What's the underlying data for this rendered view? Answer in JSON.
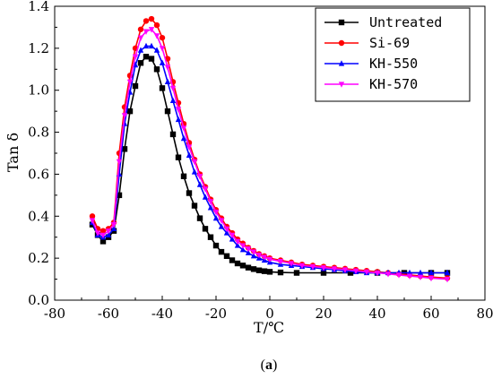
{
  "caption": {
    "prefix": "(",
    "letter": "a",
    "suffix": ")"
  },
  "chart_data": {
    "type": "line",
    "xlabel": "T/℃",
    "ylabel": "Tan δ",
    "xlim": [
      -80,
      80
    ],
    "ylim": [
      0.0,
      1.4
    ],
    "xticks": [
      -80,
      -60,
      -40,
      -20,
      0,
      20,
      40,
      60,
      80
    ],
    "yticks": [
      "0.0",
      "0.2",
      "0.4",
      "0.6",
      "0.8",
      "1.0",
      "1.2",
      "1.4"
    ],
    "grid": false,
    "legend_position": "top-right",
    "series": [
      {
        "name": "Untreated",
        "color": "#000000",
        "marker": "square",
        "points": [
          [
            -66,
            0.36
          ],
          [
            -64,
            0.31
          ],
          [
            -62,
            0.28
          ],
          [
            -60,
            0.3
          ],
          [
            -58,
            0.33
          ],
          [
            -56,
            0.5
          ],
          [
            -54,
            0.72
          ],
          [
            -52,
            0.9
          ],
          [
            -50,
            1.02
          ],
          [
            -48,
            1.13
          ],
          [
            -46,
            1.16
          ],
          [
            -44,
            1.15
          ],
          [
            -42,
            1.1
          ],
          [
            -40,
            1.01
          ],
          [
            -38,
            0.9
          ],
          [
            -36,
            0.79
          ],
          [
            -34,
            0.68
          ],
          [
            -32,
            0.59
          ],
          [
            -30,
            0.51
          ],
          [
            -28,
            0.45
          ],
          [
            -26,
            0.39
          ],
          [
            -24,
            0.34
          ],
          [
            -22,
            0.3
          ],
          [
            -20,
            0.26
          ],
          [
            -18,
            0.23
          ],
          [
            -16,
            0.21
          ],
          [
            -14,
            0.19
          ],
          [
            -12,
            0.175
          ],
          [
            -10,
            0.165
          ],
          [
            -8,
            0.155
          ],
          [
            -6,
            0.148
          ],
          [
            -4,
            0.142
          ],
          [
            -2,
            0.138
          ],
          [
            0,
            0.135
          ],
          [
            4,
            0.132
          ],
          [
            10,
            0.13
          ],
          [
            20,
            0.13
          ],
          [
            30,
            0.13
          ],
          [
            40,
            0.13
          ],
          [
            50,
            0.13
          ],
          [
            60,
            0.13
          ],
          [
            66,
            0.13
          ]
        ]
      },
      {
        "name": "Si-69",
        "color": "#ff0000",
        "marker": "circle",
        "points": [
          [
            -66,
            0.4
          ],
          [
            -64,
            0.34
          ],
          [
            -62,
            0.33
          ],
          [
            -60,
            0.34
          ],
          [
            -58,
            0.37
          ],
          [
            -56,
            0.7
          ],
          [
            -54,
            0.92
          ],
          [
            -52,
            1.07
          ],
          [
            -50,
            1.2
          ],
          [
            -48,
            1.29
          ],
          [
            -46,
            1.33
          ],
          [
            -44,
            1.34
          ],
          [
            -42,
            1.31
          ],
          [
            -40,
            1.25
          ],
          [
            -38,
            1.15
          ],
          [
            -36,
            1.04
          ],
          [
            -34,
            0.94
          ],
          [
            -32,
            0.84
          ],
          [
            -30,
            0.75
          ],
          [
            -28,
            0.67
          ],
          [
            -26,
            0.6
          ],
          [
            -24,
            0.54
          ],
          [
            -22,
            0.48
          ],
          [
            -20,
            0.43
          ],
          [
            -18,
            0.39
          ],
          [
            -16,
            0.35
          ],
          [
            -14,
            0.32
          ],
          [
            -12,
            0.29
          ],
          [
            -10,
            0.27
          ],
          [
            -8,
            0.25
          ],
          [
            -6,
            0.235
          ],
          [
            -4,
            0.22
          ],
          [
            -2,
            0.21
          ],
          [
            0,
            0.2
          ],
          [
            4,
            0.19
          ],
          [
            8,
            0.18
          ],
          [
            12,
            0.17
          ],
          [
            16,
            0.165
          ],
          [
            20,
            0.16
          ],
          [
            24,
            0.155
          ],
          [
            28,
            0.15
          ],
          [
            32,
            0.145
          ],
          [
            36,
            0.14
          ],
          [
            40,
            0.135
          ],
          [
            44,
            0.13
          ],
          [
            48,
            0.125
          ],
          [
            52,
            0.12
          ],
          [
            56,
            0.115
          ],
          [
            60,
            0.11
          ],
          [
            66,
            0.105
          ]
        ]
      },
      {
        "name": "KH-550",
        "color": "#0000ff",
        "marker": "triangle-up",
        "points": [
          [
            -66,
            0.37
          ],
          [
            -64,
            0.31
          ],
          [
            -62,
            0.3
          ],
          [
            -60,
            0.31
          ],
          [
            -58,
            0.34
          ],
          [
            -56,
            0.6
          ],
          [
            -54,
            0.84
          ],
          [
            -52,
            0.99
          ],
          [
            -50,
            1.12
          ],
          [
            -48,
            1.19
          ],
          [
            -46,
            1.21
          ],
          [
            -44,
            1.21
          ],
          [
            -42,
            1.19
          ],
          [
            -40,
            1.13
          ],
          [
            -38,
            1.04
          ],
          [
            -36,
            0.95
          ],
          [
            -34,
            0.86
          ],
          [
            -32,
            0.77
          ],
          [
            -30,
            0.69
          ],
          [
            -28,
            0.61
          ],
          [
            -26,
            0.55
          ],
          [
            -24,
            0.49
          ],
          [
            -22,
            0.44
          ],
          [
            -20,
            0.39
          ],
          [
            -18,
            0.35
          ],
          [
            -16,
            0.32
          ],
          [
            -14,
            0.29
          ],
          [
            -12,
            0.26
          ],
          [
            -10,
            0.24
          ],
          [
            -8,
            0.225
          ],
          [
            -6,
            0.21
          ],
          [
            -4,
            0.2
          ],
          [
            -2,
            0.19
          ],
          [
            0,
            0.18
          ],
          [
            4,
            0.17
          ],
          [
            8,
            0.165
          ],
          [
            12,
            0.16
          ],
          [
            16,
            0.155
          ],
          [
            20,
            0.15
          ],
          [
            24,
            0.145
          ],
          [
            28,
            0.14
          ],
          [
            32,
            0.135
          ],
          [
            36,
            0.13
          ],
          [
            40,
            0.13
          ],
          [
            44,
            0.13
          ],
          [
            48,
            0.13
          ],
          [
            52,
            0.13
          ],
          [
            56,
            0.13
          ],
          [
            60,
            0.13
          ],
          [
            66,
            0.13
          ]
        ]
      },
      {
        "name": "KH-570",
        "color": "#ff00ff",
        "marker": "triangle-down",
        "points": [
          [
            -66,
            0.38
          ],
          [
            -64,
            0.32
          ],
          [
            -62,
            0.31
          ],
          [
            -60,
            0.33
          ],
          [
            -58,
            0.36
          ],
          [
            -56,
            0.66
          ],
          [
            -54,
            0.88
          ],
          [
            -52,
            1.04
          ],
          [
            -50,
            1.16
          ],
          [
            -48,
            1.25
          ],
          [
            -46,
            1.28
          ],
          [
            -44,
            1.29
          ],
          [
            -42,
            1.26
          ],
          [
            -40,
            1.2
          ],
          [
            -38,
            1.11
          ],
          [
            -36,
            1.01
          ],
          [
            -34,
            0.91
          ],
          [
            -32,
            0.82
          ],
          [
            -30,
            0.73
          ],
          [
            -28,
            0.66
          ],
          [
            -26,
            0.59
          ],
          [
            -24,
            0.53
          ],
          [
            -22,
            0.47
          ],
          [
            -20,
            0.42
          ],
          [
            -18,
            0.38
          ],
          [
            -16,
            0.34
          ],
          [
            -14,
            0.31
          ],
          [
            -12,
            0.28
          ],
          [
            -10,
            0.26
          ],
          [
            -8,
            0.245
          ],
          [
            -6,
            0.23
          ],
          [
            -4,
            0.215
          ],
          [
            -2,
            0.205
          ],
          [
            0,
            0.195
          ],
          [
            4,
            0.185
          ],
          [
            8,
            0.175
          ],
          [
            12,
            0.165
          ],
          [
            16,
            0.16
          ],
          [
            20,
            0.155
          ],
          [
            24,
            0.15
          ],
          [
            28,
            0.145
          ],
          [
            32,
            0.14
          ],
          [
            36,
            0.135
          ],
          [
            40,
            0.13
          ],
          [
            44,
            0.125
          ],
          [
            48,
            0.12
          ],
          [
            52,
            0.115
          ],
          [
            56,
            0.11
          ],
          [
            60,
            0.105
          ],
          [
            66,
            0.1
          ]
        ]
      }
    ]
  }
}
